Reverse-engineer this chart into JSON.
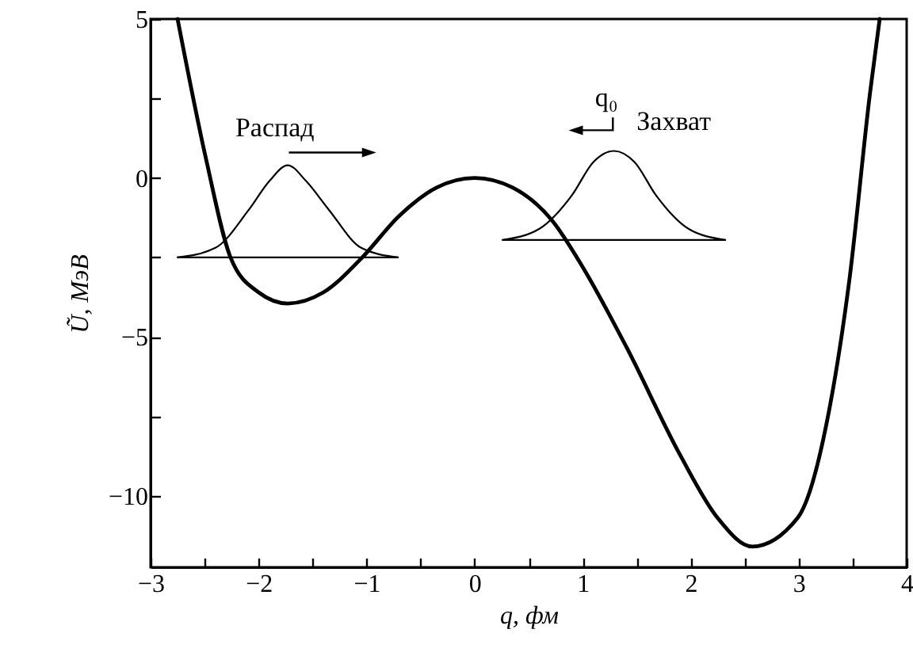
{
  "chart_data": {
    "type": "line",
    "xlabel": "q, фм",
    "ylabel": "Ũ, МэВ",
    "xlim": [
      -3,
      4
    ],
    "ylim": [
      -12.25,
      5
    ],
    "xticks": [
      {
        "value": -3,
        "label": "−3"
      },
      {
        "value": -2.5,
        "label": null
      },
      {
        "value": -2,
        "label": "−2"
      },
      {
        "value": -1.5,
        "label": null
      },
      {
        "value": -1,
        "label": "−1"
      },
      {
        "value": -0.5,
        "label": null
      },
      0,
      {
        "value": 0.5,
        "label": null
      },
      1,
      {
        "value": 1.5,
        "label": null
      },
      2,
      {
        "value": 2.5,
        "label": null
      },
      3,
      {
        "value": 3.5,
        "label": null
      },
      4
    ],
    "yticks": [
      {
        "value": -10,
        "label": "−10"
      },
      {
        "value": -7.5,
        "label": null
      },
      {
        "value": -5,
        "label": "−5"
      },
      {
        "value": -2.5,
        "label": null
      },
      0,
      {
        "value": 2.5,
        "label": null
      },
      5
    ],
    "grid": false,
    "marker": "none",
    "series": [
      {
        "color": "#000000",
        "x": [
          -2.75,
          -2.49,
          -2.26,
          -2.0,
          -1.73,
          -1.4,
          -1.04,
          -0.7,
          -0.35,
          0,
          0.35,
          0.72,
          1.0,
          1.41,
          1.9,
          2.25,
          2.57,
          2.99,
          3.28,
          3.47,
          3.66,
          3.75
        ],
        "values": [
          5,
          0.65,
          -2.5,
          -3.6,
          -3.95,
          -3.6,
          -2.5,
          -1.2,
          -0.3,
          0,
          -0.3,
          -1.35,
          -2.8,
          -5.35,
          -8.7,
          -10.7,
          -11.6,
          -10.7,
          -7.35,
          -3.2,
          2.65,
          5
        ]
      },
      {
        "color": "#000000",
        "x": [
          -2.75,
          -2.4,
          -2.09,
          -1.9,
          -1.73,
          -1.56,
          -1.35,
          -1.05,
          -0.71
        ],
        "values": [
          -2.5,
          -2.2,
          -1.0,
          -0.1,
          0.4,
          -0.1,
          -1.0,
          -2.2,
          -2.5
        ]
      },
      {
        "color": "#000000",
        "x": [
          -2.75,
          -0.71
        ],
        "values": [
          -2.5,
          -2.5
        ]
      },
      {
        "color": "#000000",
        "x": [
          0.26,
          0.6,
          0.9,
          1.1,
          1.29,
          1.48,
          1.68,
          1.98,
          2.32
        ],
        "values": [
          -1.95,
          -1.6,
          -0.55,
          0.5,
          0.85,
          0.5,
          -0.55,
          -1.6,
          -1.95
        ]
      },
      {
        "color": "#000000",
        "x": [
          0.26,
          2.32
        ],
        "values": [
          -1.95,
          -1.95
        ]
      }
    ],
    "annotations": [
      "Распад",
      "q₀",
      "Захват"
    ]
  }
}
